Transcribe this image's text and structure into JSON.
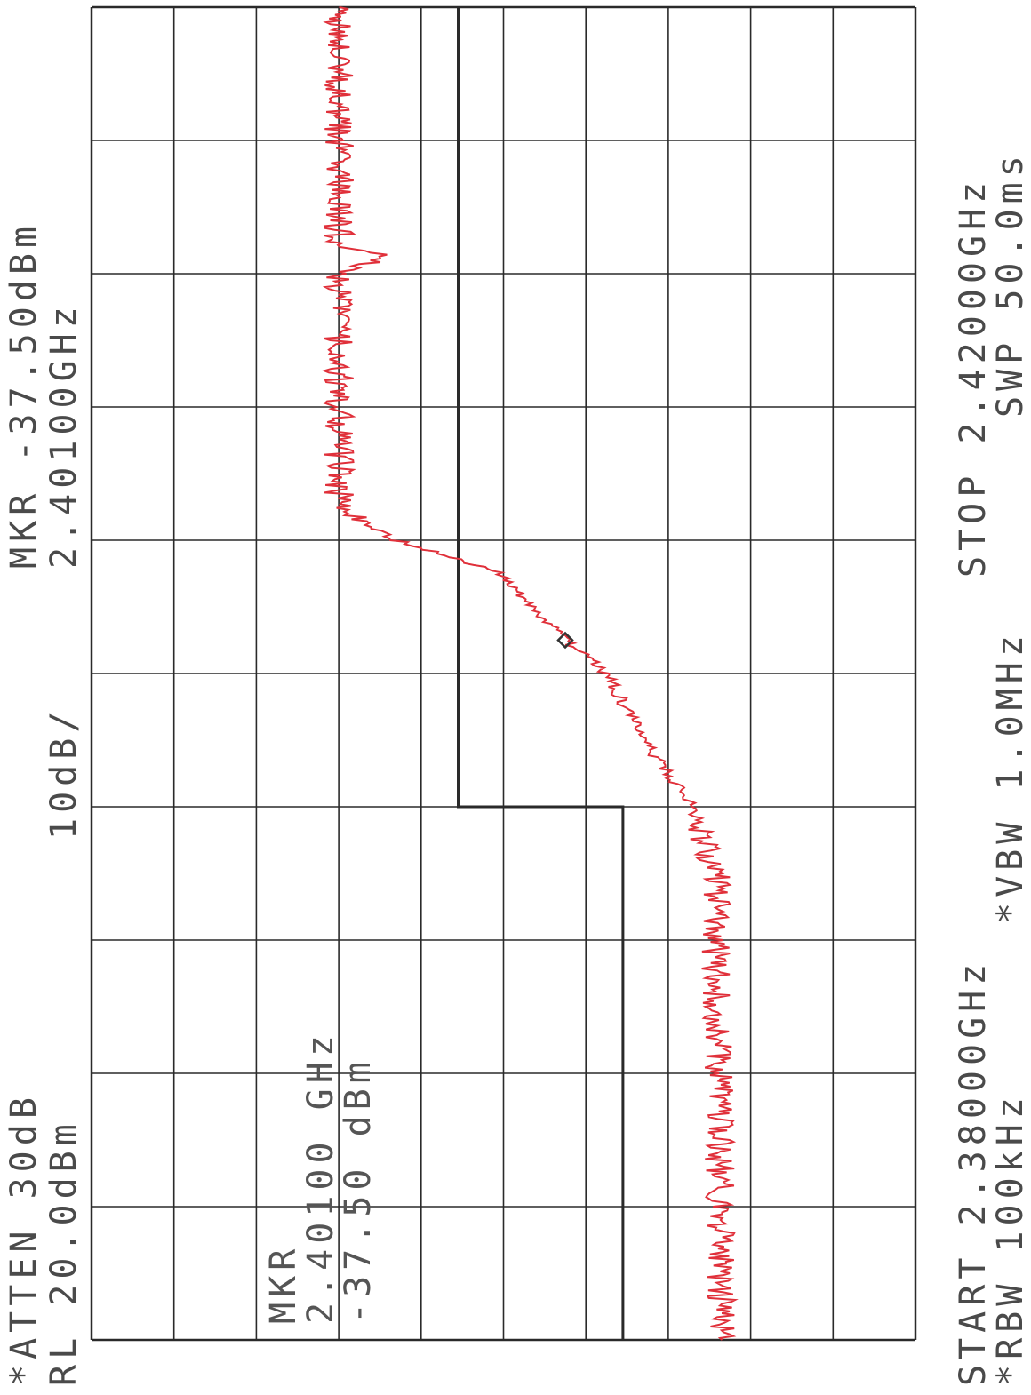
{
  "header": {
    "atten": "*ATTEN 30dB",
    "ref_level": "RL 20.0dBm",
    "scale": "10dB/",
    "marker_label": "MKR -37.50dBm",
    "marker_freq": "2.40100GHz"
  },
  "footer": {
    "start": "START 2.38000GHz",
    "stop": "STOP 2.42000GHz",
    "rbw": "*RBW 100kHz",
    "vbw": "*VBW 1.0MHz",
    "sweep": "SWP 50.0ms"
  },
  "marker_box": {
    "line1": "MKR",
    "line2": "2.40100 GHz",
    "line3": "-37.50 dBm"
  },
  "colors": {
    "trace": "#e0303a",
    "grid": "#2a2a2a",
    "limit": "#2a2a2a",
    "text": "#4a4a4a"
  },
  "chart_data": {
    "type": "line",
    "orientation": "rotated-90-ccw",
    "title": "",
    "xlabel": "",
    "ylabel": "",
    "xlim": [
      2.38,
      2.42
    ],
    "x_unit": "GHz",
    "ylim": [
      -80,
      20
    ],
    "y_unit": "dBm",
    "y_per_div": 10,
    "grid": true,
    "trace_points": [
      {
        "x": 2.38,
        "y": -56.5
      },
      {
        "x": 2.382,
        "y": -56.5
      },
      {
        "x": 2.384,
        "y": -56.3
      },
      {
        "x": 2.386,
        "y": -56.2
      },
      {
        "x": 2.388,
        "y": -56.0
      },
      {
        "x": 2.39,
        "y": -56.0
      },
      {
        "x": 2.392,
        "y": -55.7
      },
      {
        "x": 2.394,
        "y": -55.8
      },
      {
        "x": 2.396,
        "y": -53.0
      },
      {
        "x": 2.398,
        "y": -47.0
      },
      {
        "x": 2.4,
        "y": -42.5
      },
      {
        "x": 2.401,
        "y": -37.5
      },
      {
        "x": 2.402,
        "y": -33.5
      },
      {
        "x": 2.403,
        "y": -29.5
      },
      {
        "x": 2.404,
        "y": -17.0
      },
      {
        "x": 2.405,
        "y": -10.0
      },
      {
        "x": 2.407,
        "y": -10.0
      },
      {
        "x": 2.41,
        "y": -10.0
      },
      {
        "x": 2.412,
        "y": -10.0
      },
      {
        "x": 2.414,
        "y": -10.0
      },
      {
        "x": 2.416,
        "y": -10.0
      },
      {
        "x": 2.418,
        "y": -10.0
      },
      {
        "x": 2.42,
        "y": -10.0
      }
    ],
    "trace_spike": {
      "x": 2.4125,
      "y": -16.5
    },
    "marker": {
      "x": 2.401,
      "y": -37.5
    },
    "limit_line": [
      {
        "x": 2.38,
        "y": -44.5
      },
      {
        "x": 2.396,
        "y": -44.5
      },
      {
        "x": 2.396,
        "y": -24.5
      },
      {
        "x": 2.42,
        "y": -24.5
      }
    ]
  }
}
